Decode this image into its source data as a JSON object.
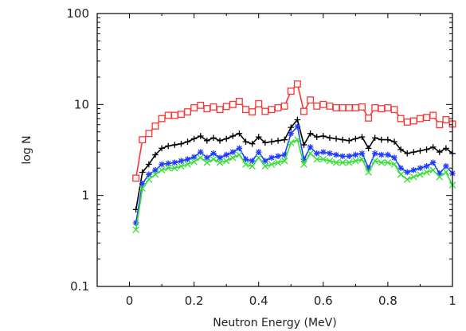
{
  "chart_data": {
    "type": "line",
    "title": "",
    "xlabel": "Neutron Energy (MeV)",
    "ylabel": "log N",
    "xlim": [
      -0.1,
      1.0
    ],
    "ylim": [
      0.1,
      100
    ],
    "yscale": "log",
    "grid": false,
    "xticks": [
      0,
      0.2,
      0.4,
      0.6,
      0.8,
      1.0
    ],
    "xtick_labels": [
      "0",
      "0.2",
      "0.4",
      "0.6",
      "0.8",
      "1"
    ],
    "yticks": [
      0.1,
      1,
      10,
      100
    ],
    "ytick_labels": [
      "0.1",
      "1",
      "10",
      "100"
    ],
    "x": [
      0.02,
      0.04,
      0.06,
      0.08,
      0.1,
      0.12,
      0.14,
      0.16,
      0.18,
      0.2,
      0.22,
      0.24,
      0.26,
      0.28,
      0.3,
      0.32,
      0.34,
      0.36,
      0.38,
      0.4,
      0.42,
      0.44,
      0.46,
      0.48,
      0.5,
      0.52,
      0.54,
      0.56,
      0.58,
      0.6,
      0.62,
      0.64,
      0.66,
      0.68,
      0.7,
      0.72,
      0.74,
      0.76,
      0.78,
      0.8,
      0.82,
      0.84,
      0.86,
      0.88,
      0.9,
      0.92,
      0.94,
      0.96,
      0.98,
      1.0
    ],
    "series": [
      {
        "color": "#ff3333",
        "marker": "square",
        "values": [
          1.55,
          4.1,
          4.8,
          5.8,
          7.0,
          7.6,
          7.6,
          7.8,
          8.3,
          9.2,
          9.8,
          9.0,
          9.4,
          8.8,
          9.5,
          10.0,
          10.8,
          8.8,
          8.3,
          10.2,
          8.4,
          8.8,
          9.2,
          9.6,
          14.0,
          16.8,
          8.4,
          11.2,
          9.6,
          10.0,
          9.6,
          9.2,
          9.2,
          9.2,
          9.2,
          9.4,
          7.1,
          9.2,
          9.0,
          9.2,
          8.8,
          7.0,
          6.4,
          6.6,
          7.0,
          7.2,
          7.6,
          6.0,
          6.8,
          6.1
        ]
      },
      {
        "color": "#000000",
        "marker": "plus",
        "values": [
          0.7,
          1.8,
          2.2,
          2.8,
          3.3,
          3.5,
          3.6,
          3.7,
          3.9,
          4.2,
          4.5,
          4.0,
          4.3,
          4.0,
          4.2,
          4.5,
          4.8,
          3.9,
          3.7,
          4.4,
          3.8,
          3.9,
          4.0,
          4.1,
          5.6,
          6.8,
          3.6,
          4.8,
          4.4,
          4.5,
          4.3,
          4.2,
          4.1,
          4.0,
          4.2,
          4.4,
          3.3,
          4.3,
          4.1,
          4.1,
          3.9,
          3.2,
          2.9,
          3.0,
          3.1,
          3.2,
          3.4,
          3.0,
          3.3,
          2.9
        ]
      },
      {
        "color": "#1f3cff",
        "marker": "star",
        "values": [
          0.5,
          1.35,
          1.7,
          1.9,
          2.2,
          2.25,
          2.3,
          2.4,
          2.5,
          2.65,
          3.0,
          2.6,
          2.9,
          2.6,
          2.8,
          3.0,
          3.3,
          2.5,
          2.4,
          3.0,
          2.4,
          2.6,
          2.7,
          2.8,
          4.8,
          5.7,
          2.5,
          3.4,
          2.9,
          3.0,
          2.9,
          2.8,
          2.7,
          2.7,
          2.8,
          2.9,
          2.0,
          2.9,
          2.8,
          2.8,
          2.6,
          2.0,
          1.8,
          1.9,
          2.0,
          2.1,
          2.3,
          1.75,
          2.1,
          1.75
        ]
      },
      {
        "color": "#33e033",
        "marker": "x",
        "values": [
          0.42,
          1.2,
          1.5,
          1.7,
          1.9,
          2.0,
          2.0,
          2.1,
          2.2,
          2.35,
          2.6,
          2.3,
          2.5,
          2.3,
          2.4,
          2.6,
          2.8,
          2.2,
          2.1,
          2.6,
          2.1,
          2.2,
          2.3,
          2.4,
          3.8,
          4.1,
          2.2,
          2.9,
          2.5,
          2.5,
          2.4,
          2.3,
          2.3,
          2.3,
          2.4,
          2.5,
          1.8,
          2.4,
          2.3,
          2.3,
          2.2,
          1.7,
          1.5,
          1.6,
          1.7,
          1.8,
          1.9,
          1.6,
          1.8,
          1.3
        ]
      }
    ]
  }
}
